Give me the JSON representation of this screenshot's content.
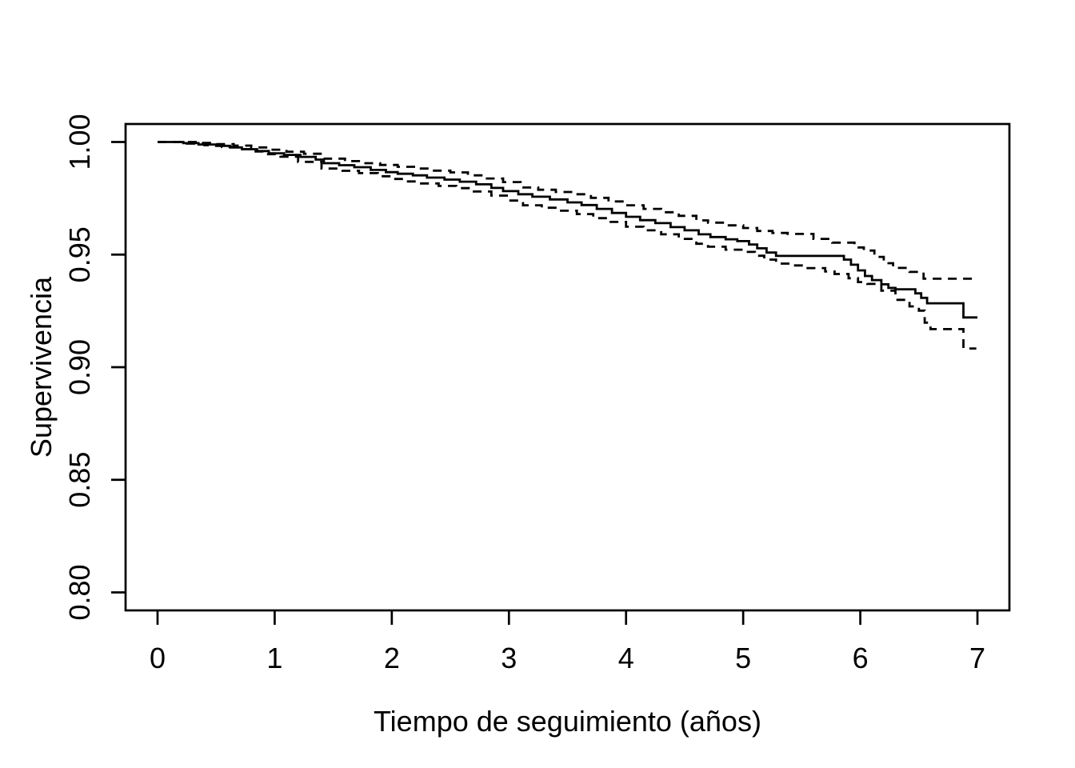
{
  "figure": {
    "background_color": "#ffffff",
    "line_color": "#000000",
    "title": ""
  },
  "chart_data": {
    "type": "line",
    "subtype": "kaplan-meier-step-curve",
    "title": "",
    "xlabel": "Tiempo de seguimiento (años)",
    "ylabel": "Supervivencia",
    "grid": false,
    "legend": null,
    "xlim": [
      0,
      7
    ],
    "ylim": [
      0.8,
      1.0
    ],
    "x_range_drawn": [
      -0.273,
      7.273
    ],
    "y_range_drawn": [
      0.792,
      1.008
    ],
    "x_ticks": [
      {
        "value": 0,
        "label": "0"
      },
      {
        "value": 1,
        "label": "1"
      },
      {
        "value": 2,
        "label": "2"
      },
      {
        "value": 3,
        "label": "3"
      },
      {
        "value": 4,
        "label": "4"
      },
      {
        "value": 5,
        "label": "5"
      },
      {
        "value": 6,
        "label": "6"
      },
      {
        "value": 7,
        "label": "7"
      }
    ],
    "y_ticks": [
      {
        "value": 0.8,
        "label": "0.80"
      },
      {
        "value": 0.85,
        "label": "0.85"
      },
      {
        "value": 0.9,
        "label": "0.90"
      },
      {
        "value": 0.95,
        "label": "0.95"
      },
      {
        "value": 1.0,
        "label": "1.00"
      }
    ],
    "series": [
      {
        "name": "survival-estimate",
        "style": "solid",
        "end_t": 7.0,
        "points": [
          [
            0,
            1.0
          ],
          [
            0.22,
            0.9995
          ],
          [
            0.35,
            0.9989
          ],
          [
            0.5,
            0.9983
          ],
          [
            0.62,
            0.9976
          ],
          [
            0.72,
            0.9968
          ],
          [
            0.85,
            0.996
          ],
          [
            0.95,
            0.995
          ],
          [
            1.08,
            0.9943
          ],
          [
            1.22,
            0.9934
          ],
          [
            1.35,
            0.9922
          ],
          [
            1.42,
            0.9906
          ],
          [
            1.55,
            0.9897
          ],
          [
            1.68,
            0.9888
          ],
          [
            1.82,
            0.9876
          ],
          [
            1.95,
            0.9866
          ],
          [
            2.05,
            0.9859
          ],
          [
            2.18,
            0.9852
          ],
          [
            2.3,
            0.9842
          ],
          [
            2.45,
            0.9833
          ],
          [
            2.58,
            0.9824
          ],
          [
            2.72,
            0.9812
          ],
          [
            2.85,
            0.9796
          ],
          [
            2.95,
            0.9782
          ],
          [
            3.08,
            0.9768
          ],
          [
            3.2,
            0.9757
          ],
          [
            3.35,
            0.9745
          ],
          [
            3.5,
            0.9732
          ],
          [
            3.62,
            0.972
          ],
          [
            3.75,
            0.9703
          ],
          [
            3.88,
            0.9685
          ],
          [
            4.0,
            0.9668
          ],
          [
            4.12,
            0.9653
          ],
          [
            4.25,
            0.964
          ],
          [
            4.38,
            0.9622
          ],
          [
            4.5,
            0.9608
          ],
          [
            4.62,
            0.959
          ],
          [
            4.72,
            0.9578
          ],
          [
            4.85,
            0.9568
          ],
          [
            4.95,
            0.956
          ],
          [
            5.05,
            0.9545
          ],
          [
            5.12,
            0.9528
          ],
          [
            5.2,
            0.9509
          ],
          [
            5.28,
            0.9494
          ],
          [
            5.86,
            0.9478
          ],
          [
            5.92,
            0.9455
          ],
          [
            5.98,
            0.943
          ],
          [
            6.04,
            0.9405
          ],
          [
            6.1,
            0.9387
          ],
          [
            6.18,
            0.9368
          ],
          [
            6.24,
            0.9352
          ],
          [
            6.3,
            0.9346
          ],
          [
            6.47,
            0.9328
          ],
          [
            6.52,
            0.9308
          ],
          [
            6.57,
            0.9284
          ],
          [
            6.88,
            0.9221
          ]
        ]
      },
      {
        "name": "ci-upper",
        "style": "dashed",
        "end_t": 6.98,
        "points": [
          [
            0,
            1.0
          ],
          [
            0.35,
            0.9996
          ],
          [
            0.5,
            0.9991
          ],
          [
            0.65,
            0.9984
          ],
          [
            0.8,
            0.9976
          ],
          [
            0.95,
            0.9966
          ],
          [
            1.1,
            0.9957
          ],
          [
            1.25,
            0.9948
          ],
          [
            1.42,
            0.9926
          ],
          [
            1.6,
            0.9915
          ],
          [
            1.75,
            0.9906
          ],
          [
            1.9,
            0.9898
          ],
          [
            2.05,
            0.989
          ],
          [
            2.2,
            0.9882
          ],
          [
            2.35,
            0.9873
          ],
          [
            2.5,
            0.9865
          ],
          [
            2.65,
            0.9852
          ],
          [
            2.8,
            0.9838
          ],
          [
            2.95,
            0.9822
          ],
          [
            3.1,
            0.9798
          ],
          [
            3.25,
            0.9788
          ],
          [
            3.4,
            0.9778
          ],
          [
            3.55,
            0.9768
          ],
          [
            3.7,
            0.9752
          ],
          [
            3.85,
            0.9736
          ],
          [
            4.0,
            0.9719
          ],
          [
            4.15,
            0.9703
          ],
          [
            4.3,
            0.9688
          ],
          [
            4.45,
            0.9672
          ],
          [
            4.6,
            0.9652
          ],
          [
            4.7,
            0.9642
          ],
          [
            4.85,
            0.963
          ],
          [
            5.0,
            0.9618
          ],
          [
            5.12,
            0.9605
          ],
          [
            5.25,
            0.9596
          ],
          [
            5.38,
            0.9592
          ],
          [
            5.6,
            0.957
          ],
          [
            5.76,
            0.9553
          ],
          [
            5.95,
            0.9532
          ],
          [
            6.03,
            0.9518
          ],
          [
            6.12,
            0.949
          ],
          [
            6.2,
            0.9462
          ],
          [
            6.28,
            0.9441
          ],
          [
            6.42,
            0.9423
          ],
          [
            6.54,
            0.9393
          ]
        ]
      },
      {
        "name": "ci-lower",
        "style": "dashed",
        "end_t": 6.99,
        "points": [
          [
            0,
            1.0
          ],
          [
            0.25,
            0.9993
          ],
          [
            0.4,
            0.9986
          ],
          [
            0.55,
            0.9978
          ],
          [
            0.68,
            0.9968
          ],
          [
            0.8,
            0.9958
          ],
          [
            0.92,
            0.9946
          ],
          [
            1.05,
            0.9935
          ],
          [
            1.2,
            0.9912
          ],
          [
            1.4,
            0.9882
          ],
          [
            1.58,
            0.9872
          ],
          [
            1.72,
            0.9862
          ],
          [
            1.88,
            0.9848
          ],
          [
            2.0,
            0.9836
          ],
          [
            2.1,
            0.9825
          ],
          [
            2.25,
            0.9816
          ],
          [
            2.4,
            0.9805
          ],
          [
            2.55,
            0.9795
          ],
          [
            2.7,
            0.978
          ],
          [
            2.85,
            0.9762
          ],
          [
            3.0,
            0.974
          ],
          [
            3.12,
            0.9719
          ],
          [
            3.28,
            0.9708
          ],
          [
            3.42,
            0.9695
          ],
          [
            3.58,
            0.968
          ],
          [
            3.72,
            0.9662
          ],
          [
            3.85,
            0.9645
          ],
          [
            4.0,
            0.9624
          ],
          [
            4.15,
            0.9608
          ],
          [
            4.3,
            0.959
          ],
          [
            4.45,
            0.957
          ],
          [
            4.6,
            0.9548
          ],
          [
            4.7,
            0.9535
          ],
          [
            4.85,
            0.9522
          ],
          [
            5.0,
            0.9512
          ],
          [
            5.1,
            0.9495
          ],
          [
            5.18,
            0.9478
          ],
          [
            5.28,
            0.946
          ],
          [
            5.4,
            0.9452
          ],
          [
            5.55,
            0.944
          ],
          [
            5.7,
            0.9425
          ],
          [
            5.78,
            0.9414
          ],
          [
            5.9,
            0.9395
          ],
          [
            5.98,
            0.9378
          ],
          [
            6.06,
            0.937
          ],
          [
            6.18,
            0.934
          ],
          [
            6.3,
            0.9299
          ],
          [
            6.42,
            0.927
          ],
          [
            6.5,
            0.9251
          ],
          [
            6.55,
            0.9198
          ],
          [
            6.6,
            0.9169
          ],
          [
            6.88,
            0.9083
          ]
        ]
      }
    ]
  }
}
